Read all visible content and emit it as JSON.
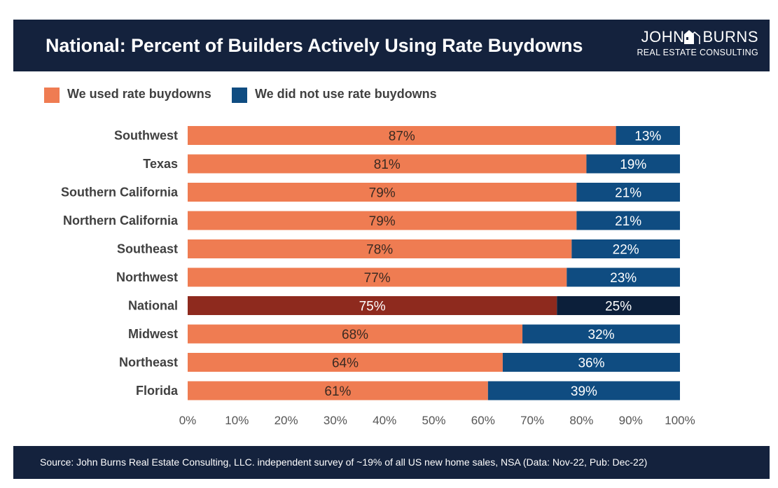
{
  "header": {
    "title": "National: Percent of Builders Actively Using Rate Buydowns",
    "logo_top_left": "JOHN",
    "logo_top_right": "BURNS",
    "logo_sub": "REAL ESTATE CONSULTING"
  },
  "legend": {
    "used": "We used rate buydowns",
    "not_used": "We did not use rate buydowns"
  },
  "footer": {
    "source": "Source: John Burns Real Estate Consulting, LLC. independent survey of ~19% of all US new home sales, NSA (Data: Nov-22, Pub: Dec-22)"
  },
  "colors": {
    "header_bg": "#14223d",
    "used": "#ef7c52",
    "not_used": "#0f4c81",
    "highlight_used": "#8e2a1e",
    "highlight_not_used": "#0c1f3a"
  },
  "chart_data": {
    "type": "bar",
    "orientation": "horizontal",
    "stacked": true,
    "categories": [
      "Southwest",
      "Texas",
      "Southern California",
      "Northern California",
      "Southeast",
      "Northwest",
      "National",
      "Midwest",
      "Northeast",
      "Florida"
    ],
    "highlight_category": "National",
    "series": [
      {
        "name": "We used rate buydowns",
        "values": [
          87,
          81,
          79,
          79,
          78,
          77,
          75,
          68,
          64,
          61
        ]
      },
      {
        "name": "We did not use rate buydowns",
        "values": [
          13,
          19,
          21,
          21,
          22,
          23,
          25,
          32,
          36,
          39
        ]
      }
    ],
    "value_labels": {
      "used": [
        "87%",
        "81%",
        "79%",
        "79%",
        "78%",
        "77%",
        "75%",
        "68%",
        "64%",
        "61%"
      ],
      "not_used": [
        "13%",
        "19%",
        "21%",
        "21%",
        "22%",
        "23%",
        "25%",
        "32%",
        "36%",
        "39%"
      ]
    },
    "xlim": [
      0,
      100
    ],
    "xticks": [
      "0%",
      "10%",
      "20%",
      "30%",
      "40%",
      "50%",
      "60%",
      "70%",
      "80%",
      "90%",
      "100%"
    ],
    "grid": false,
    "legend_position": "top-left"
  }
}
